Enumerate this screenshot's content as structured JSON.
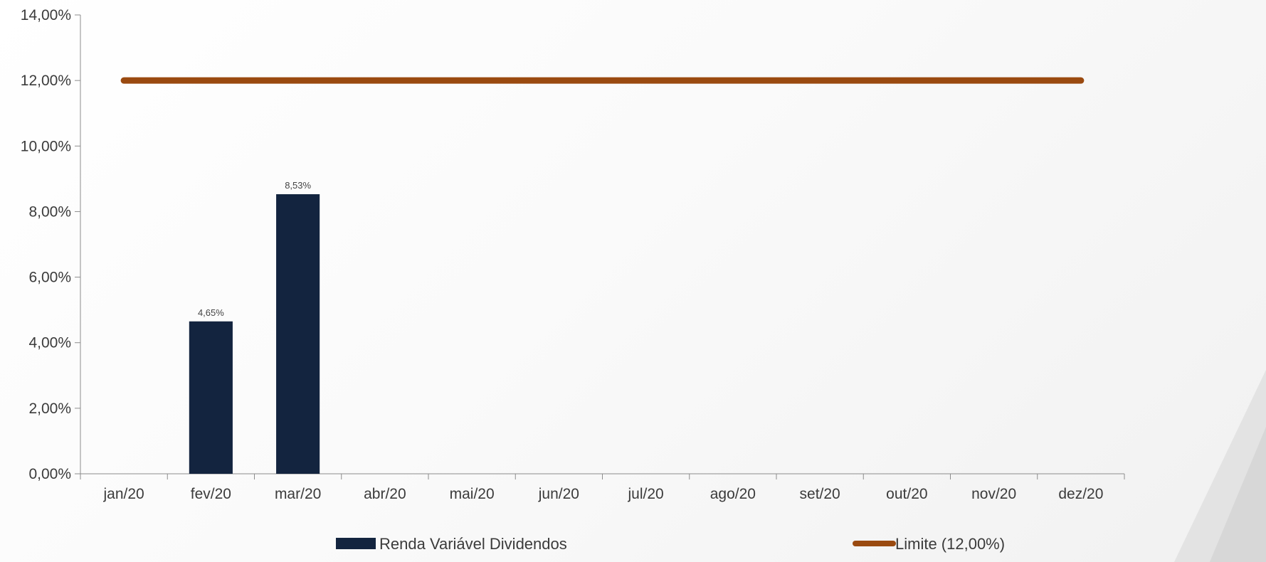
{
  "chart_data": {
    "type": "bar",
    "categories": [
      "jan/20",
      "fev/20",
      "mar/20",
      "abr/20",
      "mai/20",
      "jun/20",
      "jul/20",
      "ago/20",
      "set/20",
      "out/20",
      "nov/20",
      "dez/20"
    ],
    "series": [
      {
        "name": "Renda Variável Dividendos",
        "type": "bar",
        "values": [
          null,
          4.65,
          8.53,
          null,
          null,
          null,
          null,
          null,
          null,
          null,
          null,
          null
        ],
        "labels": [
          "",
          "4,65%",
          "8,53%",
          "",
          "",
          "",
          "",
          "",
          "",
          "",
          "",
          ""
        ],
        "color": "#13243f"
      },
      {
        "name": "Limite (12,00%)",
        "type": "line",
        "values": [
          12,
          12,
          12,
          12,
          12,
          12,
          12,
          12,
          12,
          12,
          12,
          12
        ],
        "color": "#9a4a10"
      }
    ],
    "ylim": [
      0,
      14
    ],
    "yticks": [
      0,
      2,
      4,
      6,
      8,
      10,
      12,
      14
    ],
    "ytick_labels": [
      "0,00%",
      "2,00%",
      "4,00%",
      "6,00%",
      "8,00%",
      "10,00%",
      "12,00%",
      "14,00%"
    ],
    "legend_position": "bottom",
    "grid": false,
    "title": "",
    "xlabel": "",
    "ylabel": ""
  }
}
